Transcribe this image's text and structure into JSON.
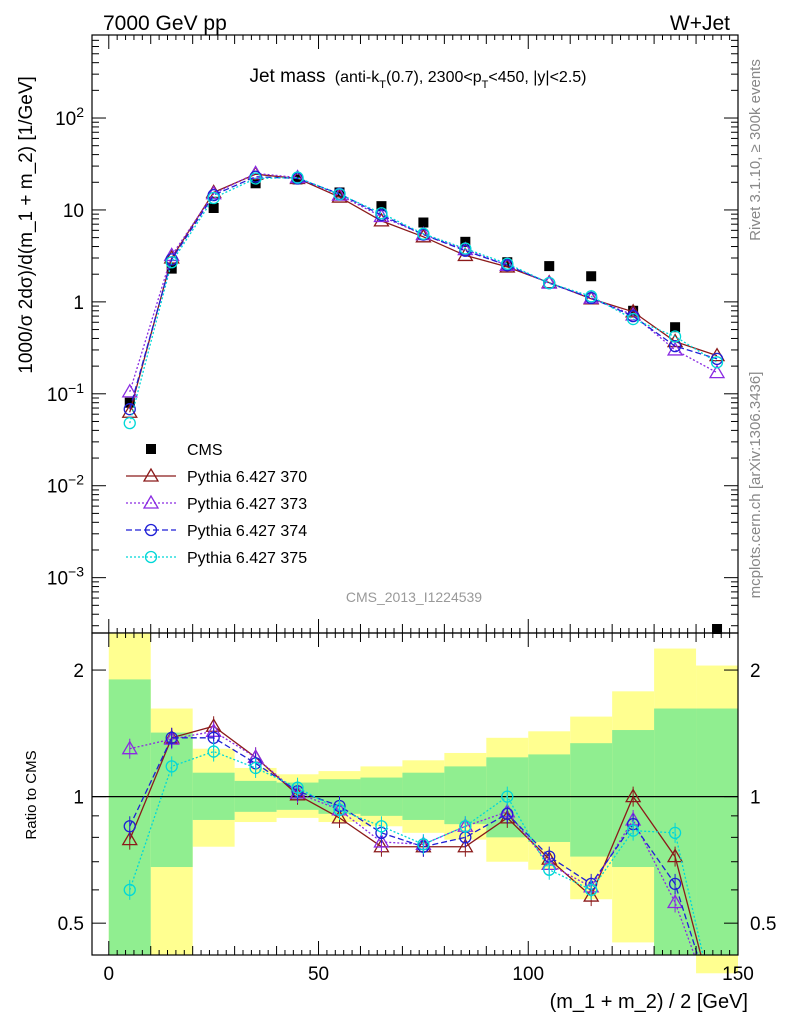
{
  "header": {
    "left": "7000 GeV pp",
    "right": "W+Jet"
  },
  "side_labels": {
    "rivet": "Rivet 3.1.10, ≥ 300k events",
    "mcplots": "mcplots.cern.ch [arXiv:1306.3436]"
  },
  "colors": {
    "cms": "#000000",
    "p370": "#8b1a1a",
    "p373": "#8a2be2",
    "p374": "#1f1fd6",
    "p375": "#00d8d8",
    "band_green": "#90ee90",
    "band_yellow": "#ffff90"
  },
  "chart_data": [
    {
      "type": "line",
      "title_main": "Jet mass",
      "title_sub": "(anti-k_T(0.7), 2300<p_T<450, |y|<2.5)",
      "ylabel": "1000/σ 2dσ)/d(m_1 + m_2) [1/GeV]",
      "yscale": "log",
      "ylim": [
        0.00025,
        800
      ],
      "xlim": [
        -4,
        150
      ],
      "y_tick_labels": [
        "10^-3",
        "10^-2",
        "10^-1",
        "1",
        "10",
        "10^2"
      ],
      "watermark": "CMS_2013_I1224539",
      "x": [
        5,
        15,
        25,
        35,
        45,
        55,
        65,
        75,
        85,
        95,
        105,
        115,
        125,
        135,
        145
      ],
      "series": [
        {
          "name": "CMS",
          "key": "cms",
          "style": "square",
          "values": [
            0.08,
            2.3,
            10.5,
            19.5,
            21.5,
            15.5,
            11.0,
            7.3,
            4.5,
            2.7,
            2.45,
            1.9,
            0.8,
            0.53,
            0.00025
          ]
        },
        {
          "name": "Pythia 6.427 370",
          "key": "p370",
          "style": "solid-triangle",
          "values": [
            0.063,
            3.0,
            15.5,
            24.5,
            22.0,
            13.8,
            7.6,
            5.1,
            3.2,
            2.4,
            1.62,
            1.08,
            0.78,
            0.37,
            0.26
          ]
        },
        {
          "name": "Pythia 6.427 373",
          "key": "p373",
          "style": "dotted-triangle",
          "values": [
            0.105,
            3.2,
            15.0,
            25.0,
            22.5,
            14.5,
            8.5,
            5.4,
            3.7,
            2.5,
            1.6,
            1.1,
            0.72,
            0.3,
            0.17
          ]
        },
        {
          "name": "Pythia 6.427 374",
          "key": "p374",
          "style": "dashed-circle",
          "values": [
            0.068,
            2.9,
            14.5,
            23.0,
            22.0,
            15.0,
            8.8,
            5.4,
            3.6,
            2.5,
            1.6,
            1.1,
            0.7,
            0.33,
            0.24
          ]
        },
        {
          "name": "Pythia 6.427 375",
          "key": "p375",
          "style": "dotted-circle",
          "values": [
            0.048,
            2.7,
            13.5,
            22.0,
            22.5,
            14.8,
            9.2,
            5.5,
            3.8,
            2.6,
            1.6,
            1.15,
            0.65,
            0.42,
            0.22
          ]
        }
      ]
    },
    {
      "type": "line",
      "ylabel": "Ratio to CMS",
      "xlabel": "(m_1 + m_2) / 2 [GeV]",
      "yscale": "log",
      "ylim": [
        0.42,
        2.45
      ],
      "xlim": [
        -4,
        150
      ],
      "x_tick_labels": [
        "0",
        "50",
        "100",
        "150"
      ],
      "y_tick_labels": [
        "0.5",
        "1",
        "2"
      ],
      "x": [
        5,
        15,
        25,
        35,
        45,
        55,
        65,
        75,
        85,
        95,
        105,
        115,
        125,
        135,
        145
      ],
      "bins": [
        [
          0,
          10
        ],
        [
          10,
          20
        ],
        [
          20,
          30
        ],
        [
          30,
          40
        ],
        [
          40,
          50
        ],
        [
          50,
          60
        ],
        [
          60,
          70
        ],
        [
          70,
          80
        ],
        [
          80,
          90
        ],
        [
          90,
          100
        ],
        [
          100,
          110
        ],
        [
          110,
          120
        ],
        [
          120,
          130
        ],
        [
          130,
          140
        ],
        [
          140,
          150
        ]
      ],
      "band_green": [
        [
          0.42,
          1.9
        ],
        [
          0.68,
          1.42
        ],
        [
          0.88,
          1.14
        ],
        [
          0.92,
          1.09
        ],
        [
          0.93,
          1.08
        ],
        [
          0.91,
          1.1
        ],
        [
          0.9,
          1.11
        ],
        [
          0.88,
          1.14
        ],
        [
          0.86,
          1.18
        ],
        [
          0.8,
          1.24
        ],
        [
          0.78,
          1.26
        ],
        [
          0.72,
          1.34
        ],
        [
          0.68,
          1.44
        ],
        [
          0.42,
          1.62
        ],
        [
          0.42,
          1.62
        ]
      ],
      "band_yellow": [
        [
          0.42,
          2.45
        ],
        [
          0.42,
          1.62
        ],
        [
          0.76,
          1.3
        ],
        [
          0.87,
          1.17
        ],
        [
          0.89,
          1.13
        ],
        [
          0.87,
          1.15
        ],
        [
          0.85,
          1.18
        ],
        [
          0.82,
          1.22
        ],
        [
          0.79,
          1.27
        ],
        [
          0.7,
          1.38
        ],
        [
          0.67,
          1.43
        ],
        [
          0.57,
          1.55
        ],
        [
          0.45,
          1.78
        ],
        [
          0.42,
          2.25
        ],
        [
          0.38,
          2.05
        ]
      ],
      "series": [
        {
          "name": "Pythia 6.427 370",
          "key": "p370",
          "style": "solid-triangle",
          "values": [
            0.79,
            1.38,
            1.47,
            1.24,
            1.01,
            0.89,
            0.76,
            0.76,
            0.76,
            0.89,
            0.71,
            0.58,
            1.0,
            0.72,
            0.3
          ]
        },
        {
          "name": "Pythia 6.427 373",
          "key": "p373",
          "style": "dotted-triangle",
          "values": [
            1.3,
            1.37,
            1.43,
            1.24,
            1.02,
            0.93,
            0.78,
            0.77,
            0.85,
            0.92,
            0.69,
            0.61,
            0.88,
            0.56,
            0.3
          ]
        },
        {
          "name": "Pythia 6.427 374",
          "key": "p374",
          "style": "dashed-circle",
          "values": [
            0.85,
            1.38,
            1.38,
            1.2,
            1.03,
            0.95,
            0.82,
            0.76,
            0.8,
            0.91,
            0.72,
            0.62,
            0.86,
            0.62,
            0.3
          ]
        },
        {
          "name": "Pythia 6.427 375",
          "key": "p375",
          "style": "dotted-circle",
          "values": [
            0.6,
            1.18,
            1.28,
            1.17,
            1.05,
            0.93,
            0.85,
            0.77,
            0.85,
            1.0,
            0.67,
            0.6,
            0.83,
            0.82,
            0.3
          ]
        }
      ]
    }
  ]
}
